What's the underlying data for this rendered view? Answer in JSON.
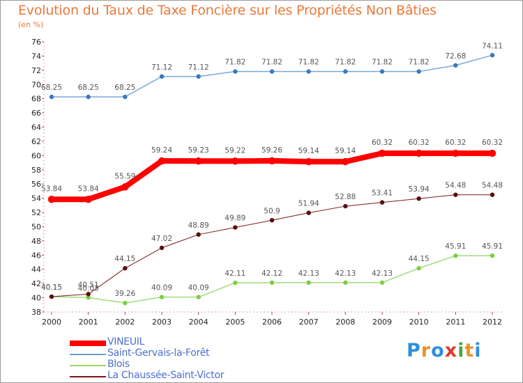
{
  "title": "Evolution du Taux de Taxe Foncière sur les Propriétés Non Bâties",
  "subtitle": "(en %)",
  "logo": {
    "letters": [
      "P",
      "r",
      "o",
      "x",
      "i",
      "t",
      "i"
    ],
    "colors": [
      "#2f8fd8",
      "#e8932a",
      "#2f8fd8",
      "#e23a2a",
      "#4aa83a",
      "#e8932a",
      "#2f8fd8"
    ]
  },
  "chart_data": {
    "type": "line",
    "x": [
      "2000",
      "2001",
      "2002",
      "2003",
      "2004",
      "2005",
      "2006",
      "2007",
      "2008",
      "2009",
      "2010",
      "2011",
      "2012"
    ],
    "ylim": [
      38,
      76
    ],
    "yticks": [
      38,
      40,
      42,
      44,
      46,
      48,
      50,
      52,
      54,
      56,
      58,
      60,
      62,
      64,
      66,
      68,
      70,
      72,
      74,
      76
    ],
    "grid": false,
    "legend_position": "bottom-left",
    "series": [
      {
        "name": "VINEUIL",
        "color": "#ff0000",
        "values": [
          53.84,
          53.84,
          55.59,
          59.24,
          59.23,
          59.22,
          59.26,
          59.14,
          59.14,
          60.32,
          60.32,
          60.32,
          60.32
        ],
        "labels": [
          "53.84",
          "53.84",
          "55.59",
          "59.24",
          "59.23",
          "59.22",
          "59.26",
          "59.14",
          "59.14",
          "60.32",
          "60.32",
          "60.32",
          "60.32"
        ]
      },
      {
        "name": "Saint-Gervais-la-Forêt",
        "color": "#6ca0d0",
        "values": [
          68.25,
          68.25,
          68.25,
          71.12,
          71.12,
          71.82,
          71.82,
          71.82,
          71.82,
          71.82,
          71.82,
          72.68,
          74.11
        ],
        "labels": [
          "68.25",
          "68.25",
          "68.25",
          "71.12",
          "71.12",
          "71.82",
          "71.82",
          "71.82",
          "71.82",
          "71.82",
          "71.82",
          "72.68",
          "74.11"
        ]
      },
      {
        "name": "Blois",
        "color": "#9ad86a",
        "values": [
          40.15,
          40.03,
          39.26,
          40.09,
          40.09,
          42.11,
          42.12,
          42.13,
          42.13,
          42.13,
          44.15,
          45.91,
          45.91
        ],
        "labels": [
          "40.15",
          "40.03",
          "39.26",
          "40.09",
          "40.09",
          "42.11",
          "42.12",
          "42.13",
          "42.13",
          "42.13",
          "44.15",
          "45.91",
          "45.91"
        ]
      },
      {
        "name": "La Chaussée-Saint-Victor",
        "color": "#7a1818",
        "values": [
          40.15,
          40.51,
          44.15,
          47.02,
          48.89,
          49.89,
          50.9,
          51.94,
          52.88,
          53.41,
          53.94,
          54.48,
          54.48
        ],
        "labels": [
          "40.15",
          "40.51",
          "44.15",
          "47.02",
          "48.89",
          "49.89",
          "50.9",
          "51.94",
          "52.88",
          "53.41",
          "53.94",
          "54.48",
          "54.48"
        ]
      }
    ]
  }
}
